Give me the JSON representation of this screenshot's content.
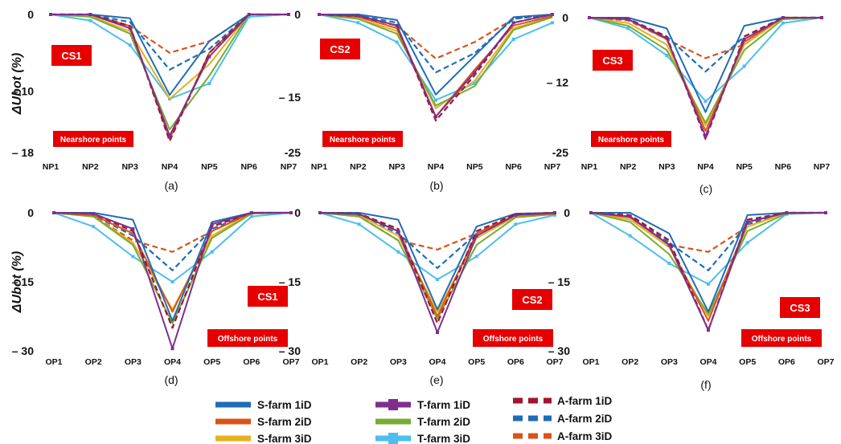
{
  "y_axis_label": "ΔUbot (%)",
  "colors": {
    "S-farm 1iD": "#1f6db5",
    "S-farm 2iD": "#d95319",
    "S-farm 3iD": "#e8b020",
    "T-farm 1iD": "#7e2f8e",
    "T-farm 2iD": "#77ac30",
    "T-farm 3iD": "#4dbeee",
    "A-farm 1iD": "#a2142f",
    "A-farm 2iD": "#1f6db5",
    "A-farm 3iD": "#d95319",
    "badge": "#e60000"
  },
  "legend": [
    {
      "name": "S-farm 1iD",
      "style": "solid"
    },
    {
      "name": "S-farm 2iD",
      "style": "solid"
    },
    {
      "name": "S-farm 3iD",
      "style": "solid"
    },
    {
      "name": "T-farm 1iD",
      "style": "solid-marker"
    },
    {
      "name": "T-farm 2iD",
      "style": "solid"
    },
    {
      "name": "T-farm 3iD",
      "style": "solid-marker"
    },
    {
      "name": "A-farm 1iD",
      "style": "dashed"
    },
    {
      "name": "A-farm 2iD",
      "style": "dashed"
    },
    {
      "name": "A-farm 3iD",
      "style": "dashed"
    }
  ],
  "chart_data": [
    {
      "panel": "(a)",
      "type": "line",
      "case": "CS1",
      "region": "Nearshore points",
      "categories": [
        "NP1",
        "NP2",
        "NP3",
        "NP4",
        "NP5",
        "NP6",
        "NP7"
      ],
      "yticks": [
        {
          "v": 0,
          "label": "0"
        },
        {
          "v": -10,
          "label": "– 10"
        },
        {
          "v": -18,
          "label": "– 18"
        }
      ],
      "ylim": [
        -18,
        0
      ],
      "series": [
        {
          "name": "S-farm 1iD",
          "values": [
            0,
            0,
            -0.5,
            -10.5,
            -3.5,
            0,
            0
          ]
        },
        {
          "name": "S-farm 2iD",
          "values": [
            0,
            0,
            -1.5,
            -16.2,
            -5,
            0,
            0
          ]
        },
        {
          "name": "S-farm 3iD",
          "values": [
            0,
            -0.2,
            -2.2,
            -11,
            -6.5,
            0,
            0
          ]
        },
        {
          "name": "T-farm 1iD",
          "values": [
            0,
            0,
            -1.8,
            -15.8,
            -5.5,
            0,
            0
          ]
        },
        {
          "name": "T-farm 2iD",
          "values": [
            0,
            -0.3,
            -2.5,
            -15,
            -8,
            0,
            0
          ]
        },
        {
          "name": "T-farm 3iD",
          "values": [
            0,
            -0.8,
            -4,
            -11,
            -9,
            -0.3,
            0
          ]
        },
        {
          "name": "A-farm 1iD",
          "values": [
            0,
            0,
            -1.5,
            -16.5,
            -5,
            0,
            0
          ]
        },
        {
          "name": "A-farm 2iD",
          "values": [
            0,
            0,
            -1,
            -7.2,
            -4.5,
            0,
            0
          ]
        },
        {
          "name": "A-farm 3iD",
          "values": [
            0,
            0,
            -1.5,
            -5,
            -3.5,
            0,
            0
          ]
        }
      ]
    },
    {
      "panel": "(b)",
      "type": "line",
      "case": "CS2",
      "region": "Nearshore points",
      "categories": [
        "NP1",
        "NP2",
        "NP3",
        "NP4",
        "NP5",
        "NP6",
        "NP7"
      ],
      "yticks": [
        {
          "v": 0,
          "label": "0"
        },
        {
          "v": -15,
          "label": "– 15"
        },
        {
          "v": -25,
          "label": "-25"
        }
      ],
      "ylim": [
        -25,
        0
      ],
      "series": [
        {
          "name": "S-farm 1iD",
          "values": [
            0,
            0,
            -1,
            -14.5,
            -7.5,
            -0.5,
            0
          ]
        },
        {
          "name": "S-farm 2iD",
          "values": [
            0,
            -0.4,
            -2.5,
            -18.5,
            -10,
            -2,
            -0.3
          ]
        },
        {
          "name": "S-farm 3iD",
          "values": [
            0,
            -0.7,
            -3,
            -17,
            -12,
            -2.5,
            -0.5
          ]
        },
        {
          "name": "T-farm 1iD",
          "values": [
            0,
            -0.2,
            -2,
            -18.5,
            -10.5,
            -1.5,
            0
          ]
        },
        {
          "name": "T-farm 2iD",
          "values": [
            0,
            -0.8,
            -3.5,
            -16.5,
            -13,
            -2.8,
            -0.5
          ]
        },
        {
          "name": "T-farm 3iD",
          "values": [
            0,
            -1.5,
            -5,
            -15.5,
            -12.5,
            -4.5,
            -1.5
          ]
        },
        {
          "name": "A-farm 1iD",
          "values": [
            0,
            -0.3,
            -2,
            -19.2,
            -11,
            -1.5,
            0
          ]
        },
        {
          "name": "A-farm 2iD",
          "values": [
            0,
            -0.2,
            -1.5,
            -10.5,
            -7,
            -0.8,
            0
          ]
        },
        {
          "name": "A-farm 3iD",
          "values": [
            0,
            -0.3,
            -2,
            -8,
            -5,
            -0.8,
            0
          ]
        }
      ]
    },
    {
      "panel": "(c)",
      "type": "line",
      "case": "CS3",
      "region": "Nearshore points",
      "categories": [
        "NP1",
        "NP2",
        "NP3",
        "NP4",
        "NP5",
        "NP6",
        "NP7"
      ],
      "yticks": [
        {
          "v": 0,
          "label": "0"
        },
        {
          "v": -12,
          "label": "– 12"
        },
        {
          "v": -25,
          "label": "-25"
        }
      ],
      "ylim": [
        -25,
        0
      ],
      "series": [
        {
          "name": "S-farm 1iD",
          "values": [
            0,
            0,
            -2,
            -17.5,
            -1.5,
            0,
            0
          ]
        },
        {
          "name": "S-farm 2iD",
          "values": [
            0,
            -0.3,
            -4,
            -21,
            -4.5,
            0,
            0
          ]
        },
        {
          "name": "S-farm 3iD",
          "values": [
            0,
            -1,
            -5,
            -20,
            -5,
            0,
            0
          ]
        },
        {
          "name": "T-farm 1iD",
          "values": [
            0,
            -0.3,
            -3.8,
            -22,
            -4,
            0,
            0
          ]
        },
        {
          "name": "T-farm 2iD",
          "values": [
            0,
            -1.5,
            -6,
            -19.5,
            -6,
            -0.3,
            0
          ]
        },
        {
          "name": "T-farm 3iD",
          "values": [
            0,
            -2,
            -7,
            -15.5,
            -9,
            -1,
            0
          ]
        },
        {
          "name": "A-farm 1iD",
          "values": [
            0,
            -0.2,
            -3.5,
            -22.5,
            -3.5,
            0,
            0
          ]
        },
        {
          "name": "A-farm 2iD",
          "values": [
            0,
            -0.3,
            -3.5,
            -10,
            -3.5,
            0,
            0
          ]
        },
        {
          "name": "A-farm 3iD",
          "values": [
            0,
            -0.5,
            -4,
            -7.5,
            -5,
            0,
            0
          ]
        }
      ]
    },
    {
      "panel": "(d)",
      "type": "line",
      "case": "CS1",
      "region": "Offshore points",
      "categories": [
        "OP1",
        "OP2",
        "OP3",
        "OP4",
        "OP5",
        "OP6",
        "OP7"
      ],
      "yticks": [
        {
          "v": 0,
          "label": "0"
        },
        {
          "v": -15,
          "label": "– 15"
        },
        {
          "v": -30,
          "label": "– 30"
        }
      ],
      "ylim": [
        -30,
        0
      ],
      "series": [
        {
          "name": "S-farm 1iD",
          "values": [
            0,
            0,
            -1.5,
            -23.5,
            -2,
            0,
            0
          ]
        },
        {
          "name": "S-farm 2iD",
          "values": [
            0,
            -0.5,
            -4.5,
            -21.5,
            -4,
            0,
            0
          ]
        },
        {
          "name": "S-farm 3iD",
          "values": [
            0,
            -0.8,
            -6.5,
            -21,
            -5,
            0,
            0
          ]
        },
        {
          "name": "T-farm 1iD",
          "values": [
            0,
            -0.2,
            -3.5,
            -29.5,
            -2.5,
            0,
            0
          ]
        },
        {
          "name": "T-farm 2iD",
          "values": [
            0,
            -0.8,
            -7,
            -24,
            -5.5,
            -0.2,
            0
          ]
        },
        {
          "name": "T-farm 3iD",
          "values": [
            0,
            -3,
            -9.5,
            -15,
            -8.5,
            -0.8,
            0
          ]
        },
        {
          "name": "A-farm 1iD",
          "values": [
            0,
            -0.2,
            -4,
            -25,
            -3,
            0,
            0
          ]
        },
        {
          "name": "A-farm 2iD",
          "values": [
            0,
            -0.5,
            -5,
            -12.5,
            -3.5,
            0,
            0
          ]
        },
        {
          "name": "A-farm 3iD",
          "values": [
            0,
            -0.8,
            -6,
            -8.5,
            -4,
            0,
            0
          ]
        }
      ]
    },
    {
      "panel": "(e)",
      "type": "line",
      "case": "CS2",
      "region": "Offshore points",
      "categories": [
        "OP1",
        "OP2",
        "OP3",
        "OP4",
        "OP5",
        "OP6",
        "OP7"
      ],
      "yticks": [
        {
          "v": 0,
          "label": "0"
        },
        {
          "v": -15,
          "label": "– 15"
        },
        {
          "v": -30,
          "label": "– 30"
        }
      ],
      "ylim": [
        -30,
        0
      ],
      "series": [
        {
          "name": "S-farm 1iD",
          "values": [
            0,
            0,
            -1.5,
            -21,
            -3,
            -0.2,
            0
          ]
        },
        {
          "name": "S-farm 2iD",
          "values": [
            0,
            -0.3,
            -4,
            -22.5,
            -4.5,
            -0.5,
            -0.2
          ]
        },
        {
          "name": "S-farm 3iD",
          "values": [
            0,
            -0.5,
            -5,
            -21.5,
            -5.5,
            -0.8,
            -0.3
          ]
        },
        {
          "name": "T-farm 1iD",
          "values": [
            0,
            -0.3,
            -4,
            -26,
            -5,
            -0.5,
            0
          ]
        },
        {
          "name": "T-farm 2iD",
          "values": [
            0,
            -0.8,
            -6,
            -23,
            -7,
            -1,
            -0.3
          ]
        },
        {
          "name": "T-farm 3iD",
          "values": [
            0,
            -2.5,
            -8.5,
            -14.5,
            -9.5,
            -2.5,
            -0.5
          ]
        },
        {
          "name": "A-farm 1iD",
          "values": [
            0,
            -0.2,
            -3.5,
            -24,
            -4,
            -0.3,
            0
          ]
        },
        {
          "name": "A-farm 2iD",
          "values": [
            0,
            -0.5,
            -4.5,
            -12,
            -4.5,
            -0.5,
            0
          ]
        },
        {
          "name": "A-farm 3iD",
          "values": [
            0,
            -0.8,
            -6,
            -8,
            -4.5,
            -0.3,
            0
          ]
        }
      ]
    },
    {
      "panel": "(f)",
      "type": "line",
      "case": "CS3",
      "region": "Offshore points",
      "categories": [
        "OP1",
        "OP2",
        "OP3",
        "OP4",
        "OP5",
        "OP6",
        "OP7"
      ],
      "yticks": [
        {
          "v": 0,
          "label": "0"
        },
        {
          "v": -15,
          "label": "– 15"
        },
        {
          "v": -30,
          "label": "– 30"
        }
      ],
      "ylim": [
        -30,
        0
      ],
      "series": [
        {
          "name": "S-farm 1iD",
          "values": [
            0,
            0,
            -4.5,
            -21.5,
            -0.5,
            0,
            0
          ]
        },
        {
          "name": "S-farm 2iD",
          "values": [
            0,
            -1,
            -7,
            -23.5,
            -2,
            0,
            0
          ]
        },
        {
          "name": "S-farm 3iD",
          "values": [
            0,
            -1.5,
            -7.5,
            -22.5,
            -3,
            0,
            0
          ]
        },
        {
          "name": "T-farm 1iD",
          "values": [
            0,
            -0.8,
            -7,
            -25.5,
            -2,
            0,
            0
          ]
        },
        {
          "name": "T-farm 2iD",
          "values": [
            0,
            -2,
            -9,
            -22,
            -4,
            -0.2,
            0
          ]
        },
        {
          "name": "T-farm 3iD",
          "values": [
            0,
            -5,
            -11,
            -15.5,
            -6.5,
            -0.3,
            0
          ]
        },
        {
          "name": "A-farm 1iD",
          "values": [
            0,
            -0.5,
            -6,
            -25.5,
            -1.5,
            0,
            0
          ]
        },
        {
          "name": "A-farm 2iD",
          "values": [
            0,
            -0.8,
            -6.5,
            -12.5,
            -2.5,
            0,
            0
          ]
        },
        {
          "name": "A-farm 3iD",
          "values": [
            0,
            -1,
            -7,
            -8.5,
            -3,
            0,
            0
          ]
        }
      ]
    }
  ]
}
